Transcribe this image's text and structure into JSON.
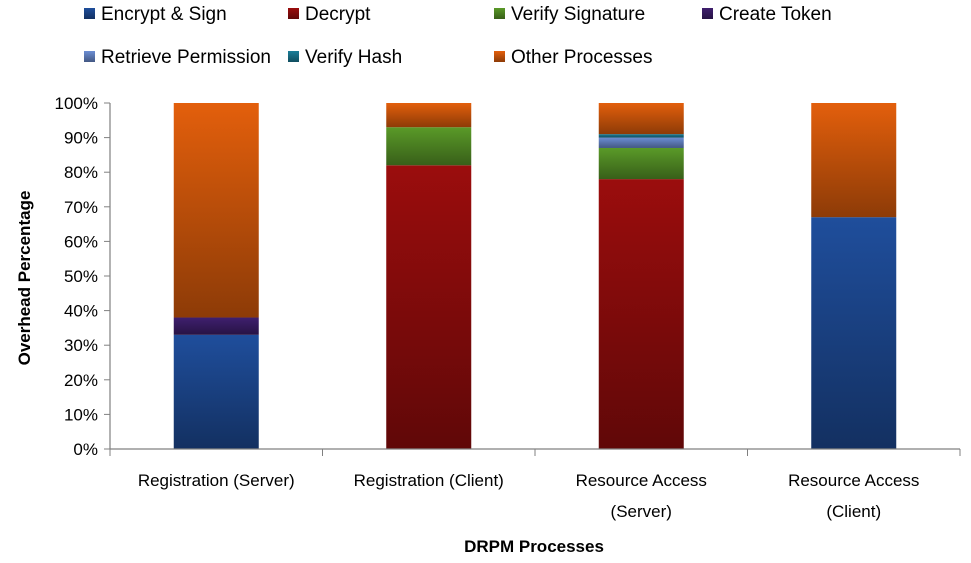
{
  "chart_data": {
    "type": "bar",
    "stacked": true,
    "percent": true,
    "title": "",
    "xlabel": "DRPM Processes",
    "ylabel": "Overhead Percentage",
    "ylim": [
      0,
      100
    ],
    "yticks": [
      "0%",
      "10%",
      "20%",
      "30%",
      "40%",
      "50%",
      "60%",
      "70%",
      "80%",
      "90%",
      "100%"
    ],
    "legend_position": "top",
    "grid": false,
    "categories": [
      [
        "Registration (Server)"
      ],
      [
        "Registration (Client)"
      ],
      [
        "Resource Access",
        "(Server)"
      ],
      [
        "Resource Access",
        "(Client)"
      ]
    ],
    "series": [
      {
        "name": "Encrypt & Sign",
        "color": "#1f4e9c",
        "values": [
          33,
          0,
          0,
          67
        ]
      },
      {
        "name": "Decrypt",
        "color": "#9b0d0d",
        "values": [
          0,
          82,
          78,
          0
        ]
      },
      {
        "name": "Verify Signature",
        "color": "#5a9a28",
        "values": [
          0,
          11,
          9,
          0
        ]
      },
      {
        "name": "Create Token",
        "color": "#3f1f6e",
        "values": [
          5,
          0,
          0,
          0
        ]
      },
      {
        "name": "Retrieve Permission",
        "color": "#6c8ed4",
        "values": [
          0,
          0,
          3,
          0
        ]
      },
      {
        "name": "Verify Hash",
        "color": "#1b7e99",
        "values": [
          0,
          0,
          1,
          0
        ]
      },
      {
        "name": "Other Processes",
        "color": "#e35f0c",
        "values": [
          62,
          7,
          9,
          33
        ]
      }
    ]
  }
}
